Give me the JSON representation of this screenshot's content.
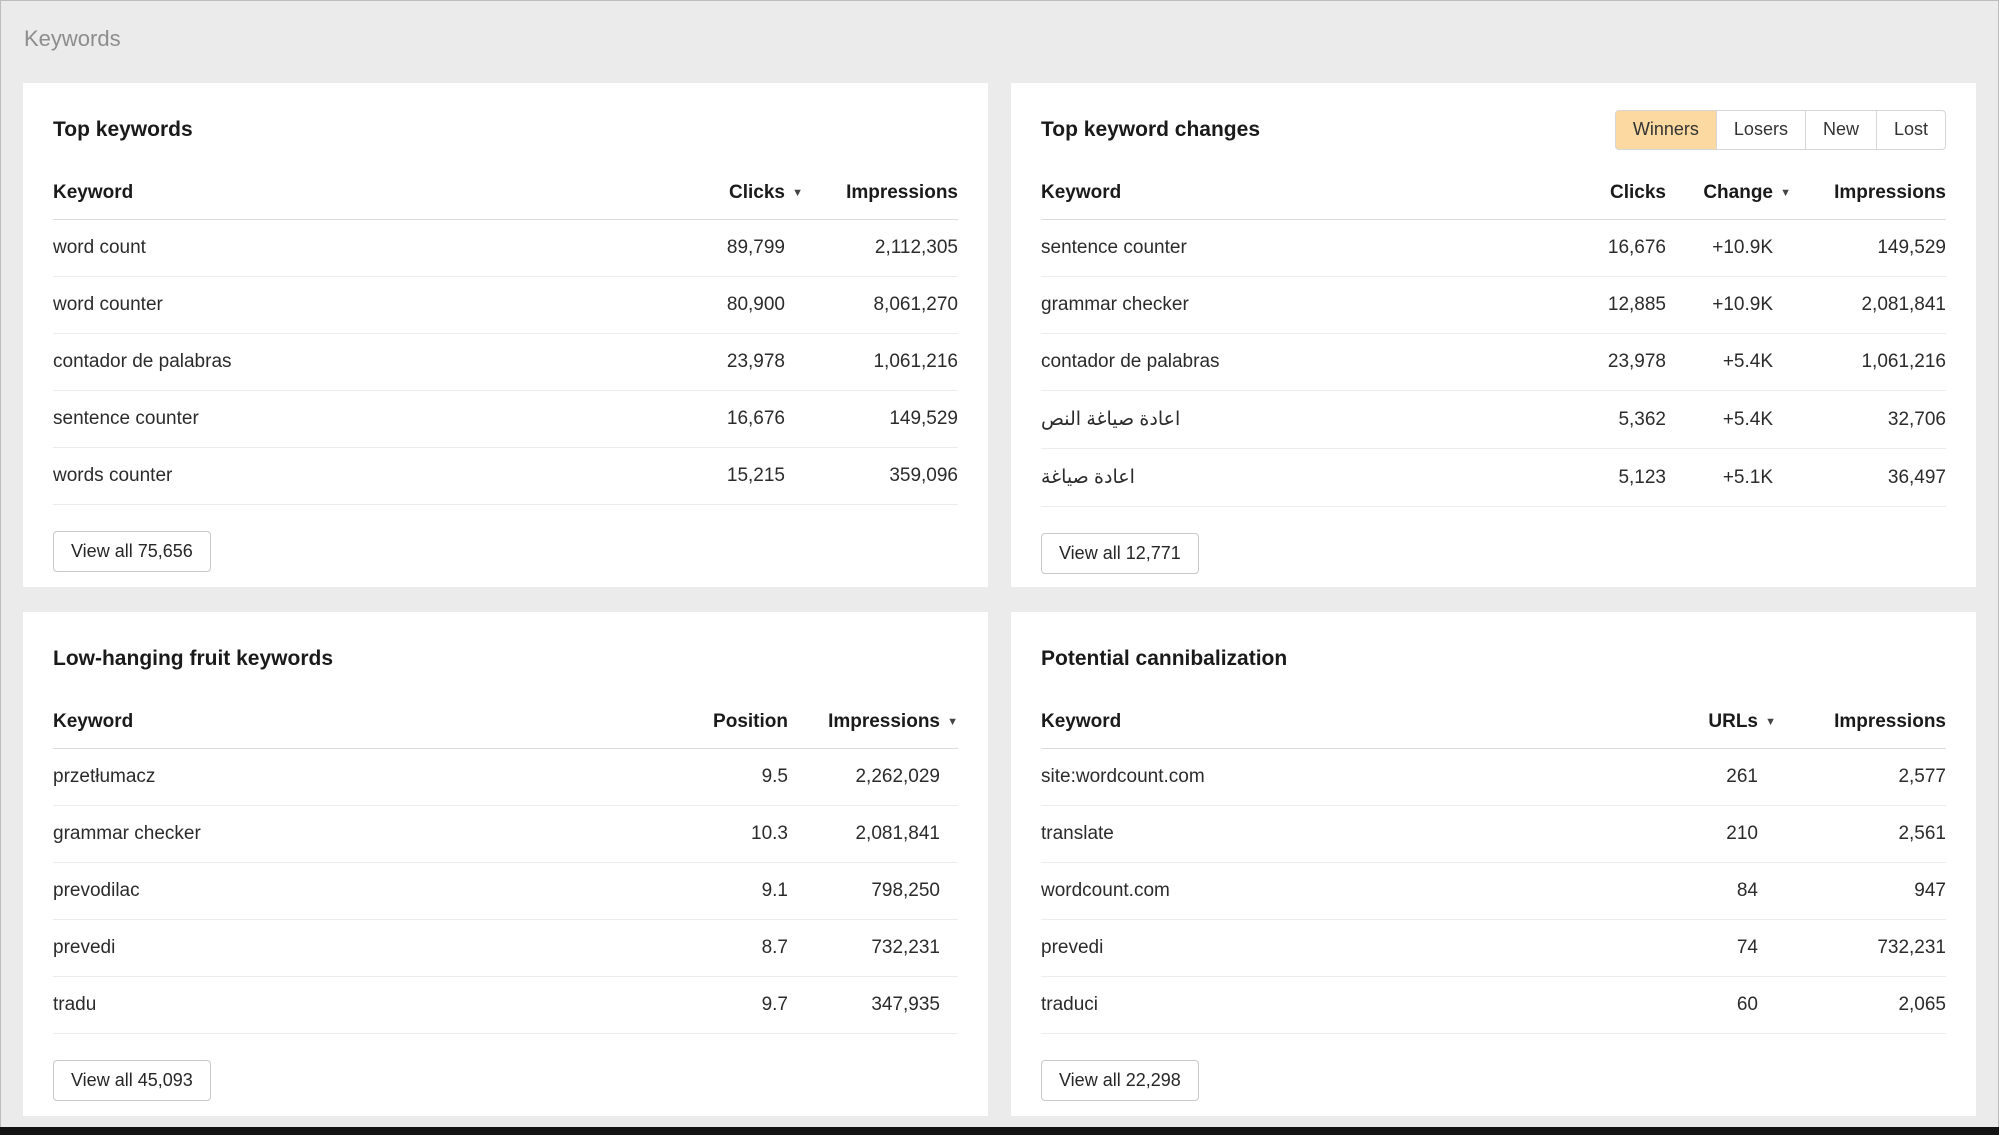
{
  "page": {
    "title": "Keywords"
  },
  "colors": {
    "page_bg": "#ebebeb",
    "card_bg": "#ffffff",
    "positive_change": "#1f9d4a",
    "active_tab_bg": "#fbd9a1"
  },
  "top_keywords": {
    "title": "Top keywords",
    "col_keyword": "Keyword",
    "col_clicks": "Clicks",
    "col_impressions": "Impressions",
    "sorted_by": "Clicks",
    "rows": [
      {
        "keyword": "word count",
        "clicks": "89,799",
        "impressions": "2,112,305"
      },
      {
        "keyword": "word counter",
        "clicks": "80,900",
        "impressions": "8,061,270"
      },
      {
        "keyword": "contador de palabras",
        "clicks": "23,978",
        "impressions": "1,061,216"
      },
      {
        "keyword": "sentence counter",
        "clicks": "16,676",
        "impressions": "149,529"
      },
      {
        "keyword": "words counter",
        "clicks": "15,215",
        "impressions": "359,096"
      }
    ],
    "view_all": "View all 75,656"
  },
  "top_changes": {
    "title": "Top keyword changes",
    "tabs": [
      "Winners",
      "Losers",
      "New",
      "Lost"
    ],
    "active_tab": "Winners",
    "col_keyword": "Keyword",
    "col_clicks": "Clicks",
    "col_change": "Change",
    "col_impressions": "Impressions",
    "sorted_by": "Change",
    "rows": [
      {
        "keyword": "sentence counter",
        "clicks": "16,676",
        "change": "+10.9K",
        "impressions": "149,529"
      },
      {
        "keyword": "grammar checker",
        "clicks": "12,885",
        "change": "+10.9K",
        "impressions": "2,081,841"
      },
      {
        "keyword": "contador de palabras",
        "clicks": "23,978",
        "change": "+5.4K",
        "impressions": "1,061,216"
      },
      {
        "keyword": "اعادة صياغة النص",
        "clicks": "5,362",
        "change": "+5.4K",
        "impressions": "32,706"
      },
      {
        "keyword": "اعادة صياغة",
        "clicks": "5,123",
        "change": "+5.1K",
        "impressions": "36,497"
      }
    ],
    "view_all": "View all 12,771"
  },
  "low_hanging": {
    "title": "Low-hanging fruit keywords",
    "col_keyword": "Keyword",
    "col_position": "Position",
    "col_impressions": "Impressions",
    "sorted_by": "Impressions",
    "rows": [
      {
        "keyword": "przetłumacz",
        "position": "9.5",
        "impressions": "2,262,029"
      },
      {
        "keyword": "grammar checker",
        "position": "10.3",
        "impressions": "2,081,841"
      },
      {
        "keyword": "prevodilac",
        "position": "9.1",
        "impressions": "798,250"
      },
      {
        "keyword": "prevedi",
        "position": "8.7",
        "impressions": "732,231"
      },
      {
        "keyword": "tradu",
        "position": "9.7",
        "impressions": "347,935"
      }
    ],
    "view_all": "View all 45,093"
  },
  "cannibalization": {
    "title": "Potential cannibalization",
    "col_keyword": "Keyword",
    "col_urls": "URLs",
    "col_impressions": "Impressions",
    "sorted_by": "URLs",
    "rows": [
      {
        "keyword": "site:wordcount.com",
        "urls": "261",
        "impressions": "2,577"
      },
      {
        "keyword": "translate",
        "urls": "210",
        "impressions": "2,561"
      },
      {
        "keyword": "wordcount.com",
        "urls": "84",
        "impressions": "947"
      },
      {
        "keyword": "prevedi",
        "urls": "74",
        "impressions": "732,231"
      },
      {
        "keyword": "traduci",
        "urls": "60",
        "impressions": "2,065"
      }
    ],
    "view_all": "View all 22,298"
  }
}
